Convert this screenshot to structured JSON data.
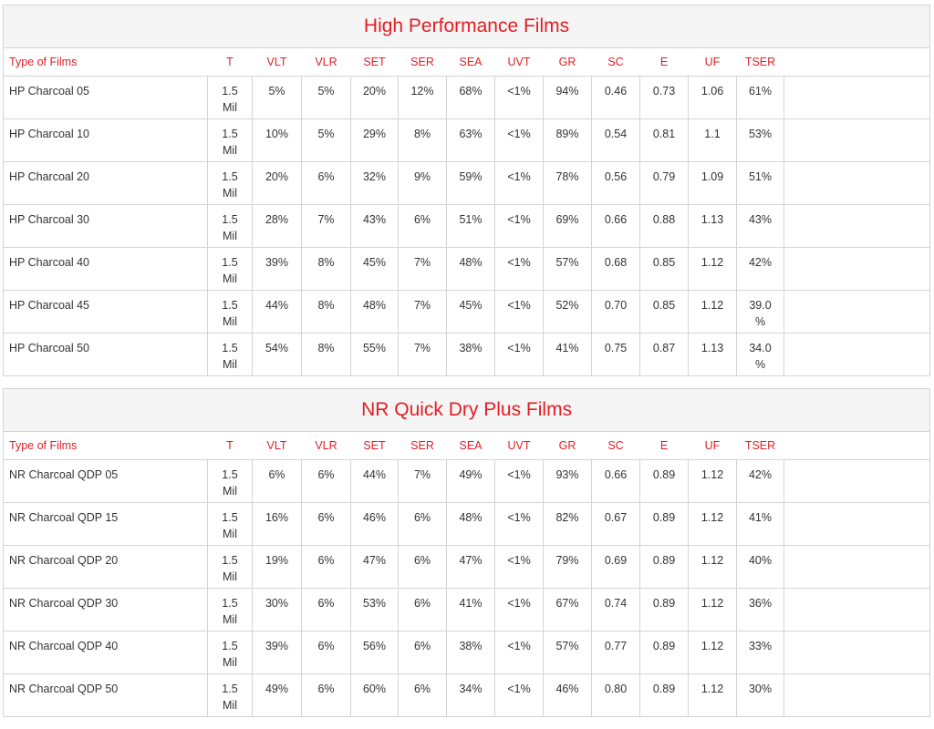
{
  "tables": [
    {
      "title": "High Performance Films",
      "headers": [
        "Type of Films",
        "T",
        "VLT",
        "VLR",
        "SET",
        "SER",
        "SEA",
        "UVT",
        "GR",
        "SC",
        "E",
        "UF",
        "TSER"
      ],
      "rows": [
        [
          "HP Charcoal 05",
          "1.5 Mil",
          "5%",
          "5%",
          "20%",
          "12%",
          "68%",
          "<1%",
          "94%",
          "0.46",
          "0.73",
          "1.06",
          "61%"
        ],
        [
          "HP Charcoal 10",
          "1.5 Mil",
          "10%",
          "5%",
          "29%",
          "8%",
          "63%",
          "<1%",
          "89%",
          "0.54",
          "0.81",
          "1.1",
          "53%"
        ],
        [
          "HP Charcoal 20",
          "1.5 Mil",
          "20%",
          "6%",
          "32%",
          "9%",
          "59%",
          "<1%",
          "78%",
          "0.56",
          "0.79",
          "1.09",
          "51%"
        ],
        [
          "HP Charcoal 30",
          "1.5 Mil",
          "28%",
          "7%",
          "43%",
          "6%",
          "51%",
          "<1%",
          "69%",
          "0.66",
          "0.88",
          "1.13",
          "43%"
        ],
        [
          "HP Charcoal 40",
          "1.5 Mil",
          "39%",
          "8%",
          "45%",
          "7%",
          "48%",
          "<1%",
          "57%",
          "0.68",
          "0.85",
          "1.12",
          "42%"
        ],
        [
          "HP Charcoal 45",
          "1.5 Mil",
          "44%",
          "8%",
          "48%",
          "7%",
          "45%",
          "<1%",
          "52%",
          "0.70",
          "0.85",
          "1.12",
          "39.0 %"
        ],
        [
          "HP Charcoal 50",
          "1.5 Mil",
          "54%",
          "8%",
          "55%",
          "7%",
          "38%",
          "<1%",
          "41%",
          "0.75",
          "0.87",
          "1.13",
          "34.0 %"
        ]
      ]
    },
    {
      "title": "NR Quick Dry Plus Films",
      "headers": [
        "Type of Films",
        "T",
        "VLT",
        "VLR",
        "SET",
        "SER",
        "SEA",
        "UVT",
        "GR",
        "SC",
        "E",
        "UF",
        "TSER"
      ],
      "rows": [
        [
          "NR Charcoal QDP 05",
          "1.5 Mil",
          "6%",
          "6%",
          "44%",
          "7%",
          "49%",
          "<1%",
          "93%",
          "0.66",
          "0.89",
          "1.12",
          "42%"
        ],
        [
          "NR Charcoal QDP 15",
          "1.5 Mil",
          "16%",
          "6%",
          "46%",
          "6%",
          "48%",
          "<1%",
          "82%",
          "0.67",
          "0.89",
          "1.12",
          "41%"
        ],
        [
          "NR Charcoal QDP 20",
          "1.5 Mil",
          "19%",
          "6%",
          "47%",
          "6%",
          "47%",
          "<1%",
          "79%",
          "0.69",
          "0.89",
          "1.12",
          "40%"
        ],
        [
          "NR Charcoal QDP 30",
          "1.5 Mil",
          "30%",
          "6%",
          "53%",
          "6%",
          "41%",
          "<1%",
          "67%",
          "0.74",
          "0.89",
          "1.12",
          "36%"
        ],
        [
          "NR Charcoal QDP 40",
          "1.5 Mil",
          "39%",
          "6%",
          "56%",
          "6%",
          "38%",
          "<1%",
          "57%",
          "0.77",
          "0.89",
          "1.12",
          "33%"
        ],
        [
          "NR Charcoal QDP 50",
          "1.5 Mil",
          "49%",
          "6%",
          "60%",
          "6%",
          "34%",
          "<1%",
          "46%",
          "0.80",
          "0.89",
          "1.12",
          "30%"
        ]
      ]
    }
  ]
}
